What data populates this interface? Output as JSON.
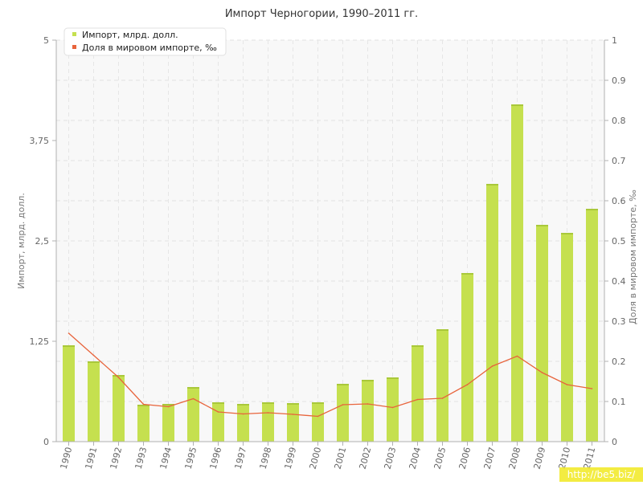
{
  "chart_data": {
    "type": "bar",
    "title": "Импорт Черногории, 1990–2011 гг.",
    "categories": [
      "1990",
      "1991",
      "1992",
      "1993",
      "1994",
      "1995",
      "1996",
      "1997",
      "1998",
      "1999",
      "2000",
      "2001",
      "2002",
      "2003",
      "2004",
      "2005",
      "2006",
      "2007",
      "2008",
      "2009",
      "2010",
      "2011"
    ],
    "series": [
      {
        "name": "Импорт, млрд. долл.",
        "type": "bar",
        "axis": "left",
        "color": "#c5e04f",
        "values": [
          1.2,
          1.0,
          0.83,
          0.46,
          0.47,
          0.68,
          0.49,
          0.47,
          0.49,
          0.48,
          0.49,
          0.72,
          0.77,
          0.8,
          1.2,
          1.4,
          2.1,
          3.21,
          4.2,
          2.7,
          2.6,
          2.9
        ]
      },
      {
        "name": "Доля в мировом импорте, ‰",
        "type": "line",
        "axis": "right",
        "color": "#e8643c",
        "values": [
          0.27,
          0.215,
          0.16,
          0.093,
          0.087,
          0.107,
          0.074,
          0.069,
          0.072,
          0.068,
          0.063,
          0.092,
          0.094,
          0.085,
          0.105,
          0.108,
          0.142,
          0.188,
          0.213,
          0.172,
          0.142,
          0.132
        ]
      }
    ],
    "ylabel": "Импорт, млрд. долл.",
    "y2label": "Доля в мировом импорте, ‰",
    "ylim": [
      0,
      5
    ],
    "y2lim": [
      0,
      1
    ],
    "yticks": [
      0,
      1.25,
      2.5,
      3.75,
      5
    ],
    "ytick_labels": [
      "0",
      "1,25",
      "2,5",
      "3,75",
      "5"
    ],
    "y2ticks": [
      0,
      0.1,
      0.2,
      0.3,
      0.4,
      0.5,
      0.6,
      0.7,
      0.8,
      0.9,
      1
    ],
    "y2tick_labels": [
      "0",
      "0.1",
      "0.2",
      "0.3",
      "0.4",
      "0.5",
      "0.6",
      "0.7",
      "0.8",
      "0.9",
      "1"
    ],
    "legend_position": "top-left",
    "grid": true
  },
  "watermark": "http://be5.biz/"
}
